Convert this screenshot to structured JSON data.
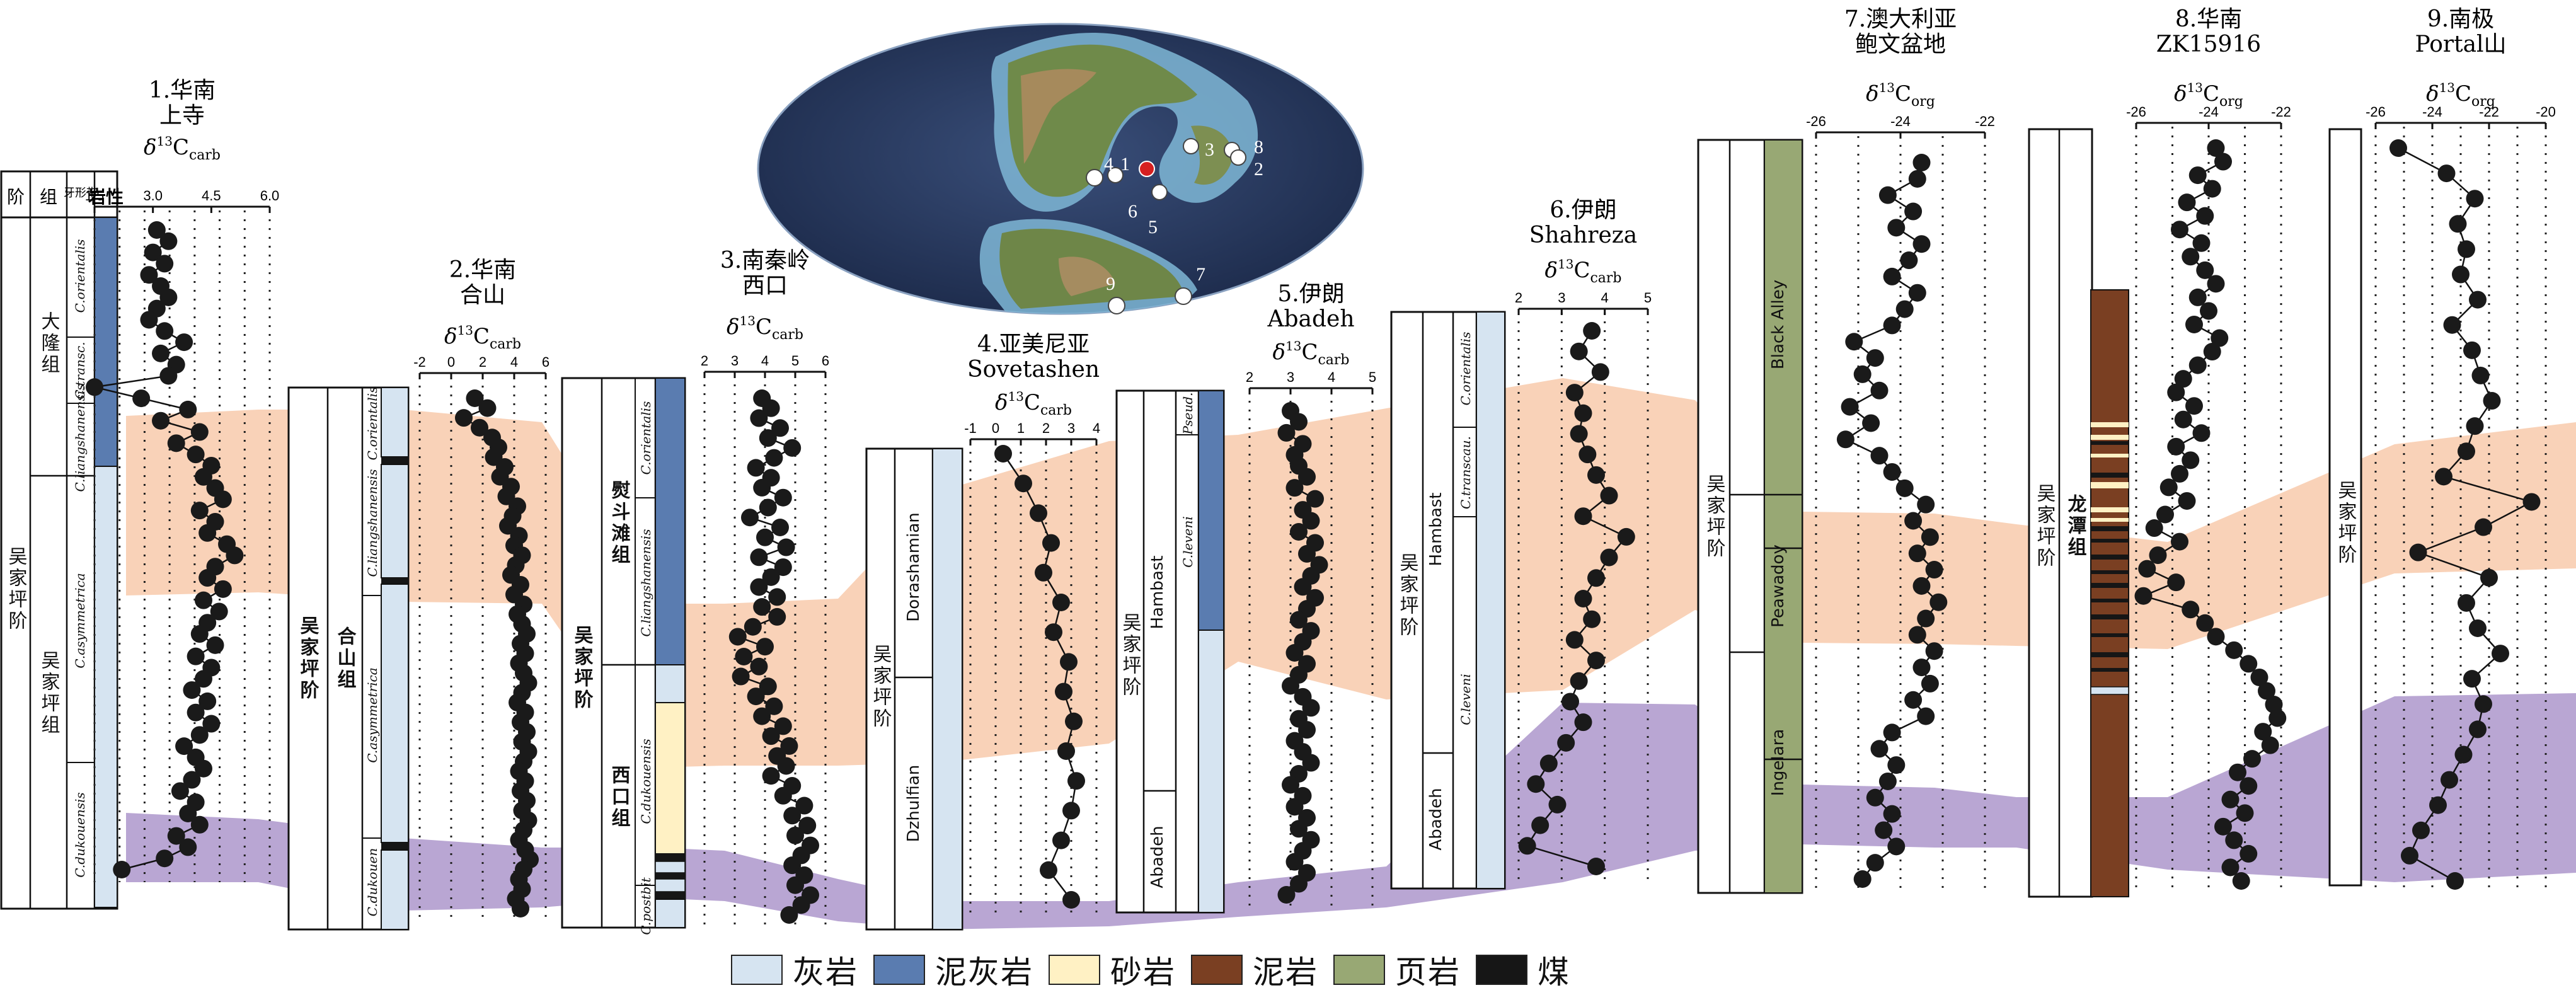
{
  "map": {
    "labels": [
      "1",
      "2",
      "3",
      "4",
      "5",
      "6",
      "7",
      "8",
      "9"
    ]
  },
  "legend": [
    {
      "label": "灰岩",
      "color": "#d6e4f1"
    },
    {
      "label": "泥灰岩",
      "color": "#5a7cb0"
    },
    {
      "label": "砂岩",
      "color": "#fff1c4"
    },
    {
      "label": "泥岩",
      "color": "#7a3f22"
    },
    {
      "label": "页岩",
      "color": "#98a874"
    },
    {
      "label": "煤",
      "color": "#161616"
    }
  ],
  "colors": {
    "band_orange": "#f9d2b8",
    "band_purple": "#b9a6d3",
    "points": "#1a1a1a"
  },
  "strat_header": [
    "阶",
    "组",
    "牙形带",
    "岩性"
  ],
  "chart_data": [
    {
      "type": "scatter",
      "title": [
        "1.华南",
        "上寺"
      ],
      "proxy": "δ13Ccarb",
      "ticks": [
        "1.5",
        "3.0",
        "4.5",
        "6.0"
      ],
      "xlim": [
        1.5,
        6.0
      ],
      "x": [
        3.1,
        3.4,
        3.0,
        3.3,
        2.9,
        3.2,
        3.4,
        3.1,
        2.9,
        3.3,
        3.8,
        3.2,
        3.6,
        3.4,
        1.5,
        2.7,
        3.9,
        3.2,
        4.2,
        3.6,
        4.1,
        4.5,
        4.3,
        4.6,
        4.8,
        4.2,
        4.6,
        4.4,
        4.9,
        5.1,
        4.6,
        4.4,
        4.8,
        4.3,
        4.7,
        4.4,
        4.2,
        4.6,
        4.1,
        4.5,
        4.3,
        4.0,
        4.4,
        4.1,
        4.5,
        4.2,
        3.8,
        4.1,
        4.3,
        4.0,
        3.7,
        4.1,
        3.9,
        4.2,
        3.6,
        3.9,
        3.3,
        2.2
      ],
      "y_order": "stratigraphic, top to bottom"
    },
    {
      "type": "scatter",
      "title": [
        "2.华南",
        "合山"
      ],
      "proxy": "δ13Ccarb",
      "ticks": [
        "-2",
        "0",
        "2",
        "4",
        "6"
      ],
      "xlim": [
        -2,
        6
      ],
      "x": [
        1.5,
        2.3,
        0.8,
        1.8,
        2.6,
        3.0,
        2.7,
        3.4,
        3.1,
        3.8,
        3.5,
        4.2,
        3.9,
        3.6,
        4.3,
        4.0,
        4.5,
        4.1,
        3.8,
        4.4,
        4.0,
        4.6,
        4.2,
        4.5,
        4.8,
        4.4,
        4.7,
        4.3,
        4.6,
        4.9,
        4.5,
        4.2,
        4.7,
        4.4,
        4.8,
        4.5,
        4.9,
        4.6,
        4.3,
        4.7,
        4.4,
        4.8,
        4.5,
        4.9,
        4.6,
        4.3,
        4.7,
        5.0,
        4.6,
        4.3,
        4.5,
        4.1,
        4.4
      ],
      "y_order": "stratigraphic, top to bottom"
    },
    {
      "type": "scatter",
      "title": [
        "3.南秦岭",
        "西口"
      ],
      "proxy": "δ13Ccarb",
      "ticks": [
        "2",
        "3",
        "4",
        "5",
        "6"
      ],
      "xlim": [
        2,
        6
      ],
      "x": [
        3.9,
        4.2,
        3.8,
        4.5,
        4.1,
        4.9,
        4.3,
        3.7,
        4.2,
        3.9,
        4.6,
        4.1,
        3.5,
        4.5,
        4.0,
        4.7,
        3.8,
        4.6,
        4.2,
        3.8,
        4.4,
        3.9,
        4.4,
        3.6,
        3.1,
        4.0,
        3.3,
        3.8,
        3.2,
        4.1,
        3.7,
        4.3,
        3.9,
        4.6,
        4.2,
        4.8,
        4.4,
        4.7,
        4.2,
        4.9,
        4.6,
        5.3,
        4.9,
        5.4,
        5.0,
        5.5,
        5.2,
        4.9,
        5.3,
        5.0,
        5.5,
        5.2,
        4.8
      ],
      "y_order": "stratigraphic, top to bottom"
    },
    {
      "type": "scatter",
      "title": [
        "4.亚美尼亚",
        "Sovetashen"
      ],
      "proxy": "δ13Ccarb",
      "ticks": [
        "-1",
        "0",
        "1",
        "2",
        "3",
        "4"
      ],
      "xlim": [
        -1,
        4
      ],
      "x": [
        0.3,
        1.1,
        1.7,
        2.2,
        1.9,
        2.6,
        2.3,
        2.9,
        2.7,
        3.1,
        2.8,
        3.2,
        3.0,
        2.6,
        2.1,
        3.0
      ],
      "y_order": "stratigraphic, top to bottom"
    },
    {
      "type": "scatter",
      "title": [
        "5.伊朗",
        "Abadeh"
      ],
      "proxy": "δ13Ccarb",
      "ticks": [
        "2",
        "3",
        "4",
        "5"
      ],
      "xlim": [
        2,
        5
      ],
      "x": [
        3.0,
        3.2,
        2.9,
        3.3,
        3.1,
        3.2,
        3.4,
        3.1,
        3.6,
        3.3,
        3.5,
        3.2,
        3.6,
        3.4,
        3.7,
        3.5,
        3.3,
        3.6,
        3.4,
        3.2,
        3.5,
        3.3,
        3.1,
        3.4,
        3.2,
        3.0,
        3.3,
        3.5,
        3.2,
        3.4,
        3.1,
        3.3,
        3.5,
        3.2,
        3.0,
        3.3,
        3.1,
        3.4,
        3.2,
        3.5,
        3.3,
        3.1,
        3.4,
        3.2,
        2.9
      ],
      "y_order": "stratigraphic, top to bottom"
    },
    {
      "type": "scatter",
      "title": [
        "6.伊朗",
        "Shahreza"
      ],
      "proxy": "δ13Ccarb",
      "ticks": [
        "2",
        "3",
        "4",
        "5"
      ],
      "xlim": [
        2,
        5
      ],
      "x": [
        3.7,
        3.4,
        3.9,
        3.3,
        3.5,
        3.4,
        3.6,
        3.8,
        4.1,
        3.5,
        4.5,
        4.1,
        3.8,
        3.5,
        3.7,
        3.3,
        3.8,
        3.4,
        3.2,
        3.5,
        3.1,
        2.7,
        2.4,
        2.9,
        2.5,
        2.2,
        3.8
      ],
      "y_order": "stratigraphic, top to bottom"
    },
    {
      "type": "scatter",
      "title": [
        "7.澳大利亚",
        "鲍文盆地"
      ],
      "proxy": "δ13Corg",
      "ticks": [
        "-26",
        "-24",
        "-22"
      ],
      "xlim": [
        -26,
        -22
      ],
      "x": [
        -23.5,
        -23.6,
        -24.3,
        -23.7,
        -24.1,
        -23.5,
        -23.8,
        -24.2,
        -23.6,
        -23.9,
        -24.2,
        -25.1,
        -24.6,
        -24.9,
        -24.5,
        -25.2,
        -24.7,
        -25.3,
        -24.5,
        -24.2,
        -23.9,
        -23.4,
        -23.7,
        -23.3,
        -23.6,
        -23.2,
        -23.5,
        -23.1,
        -23.4,
        -23.6,
        -23.2,
        -23.5,
        -23.3,
        -23.7,
        -23.4,
        -24.2,
        -24.5,
        -24.1,
        -24.3,
        -24.6,
        -24.2,
        -24.4,
        -24.1,
        -24.6,
        -24.9
      ],
      "y_order": "stratigraphic, top to bottom"
    },
    {
      "type": "scatter",
      "title": [
        "8.华南",
        "ZK15916"
      ],
      "proxy": "δ13Corg",
      "ticks": [
        "-26",
        "-24",
        "-22"
      ],
      "xlim": [
        -26,
        -22
      ],
      "x": [
        -23.8,
        -23.6,
        -24.3,
        -23.9,
        -24.6,
        -24.1,
        -24.8,
        -24.2,
        -24.5,
        -24.1,
        -23.8,
        -24.3,
        -24.0,
        -24.4,
        -23.7,
        -23.9,
        -24.3,
        -24.7,
        -24.9,
        -24.4,
        -24.7,
        -24.2,
        -24.9,
        -24.5,
        -24.8,
        -25.1,
        -24.6,
        -25.2,
        -25.5,
        -24.8,
        -25.4,
        -25.7,
        -24.9,
        -25.8,
        -24.5,
        -24.1,
        -23.8,
        -23.3,
        -22.9,
        -22.6,
        -22.4,
        -22.2,
        -22.1,
        -22.5,
        -22.3,
        -22.8,
        -23.2,
        -22.9,
        -23.4,
        -23.0,
        -23.6,
        -23.3,
        -22.9,
        -23.4,
        -23.1
      ],
      "y_order": "stratigraphic, top to bottom"
    },
    {
      "type": "scatter",
      "title": [
        "9.南极",
        "Portal山"
      ],
      "proxy": "δ13Corg",
      "ticks": [
        "-26",
        "-24",
        "-22",
        "-20"
      ],
      "xlim": [
        -26,
        -20
      ],
      "x": [
        -25.2,
        -23.5,
        -22.5,
        -23.1,
        -22.8,
        -23.0,
        -22.4,
        -23.3,
        -22.6,
        -22.3,
        -21.9,
        -22.5,
        -22.8,
        -23.6,
        -20.5,
        -22.2,
        -24.5,
        -22.0,
        -22.8,
        -22.4,
        -21.6,
        -22.6,
        -22.2,
        -22.4,
        -22.9,
        -23.4,
        -23.8,
        -24.4,
        -24.8,
        -23.2
      ],
      "y_order": "stratigraphic, top to bottom"
    }
  ],
  "columns": {
    "s1": {
      "stage": "吴家坪阶",
      "formations": [
        "大隆组",
        "吴家坪组"
      ],
      "zones": [
        "C.orientalis",
        "C.transc.",
        "C.liangshanensis",
        "C.asymmetrica",
        "C.dukouensis"
      ]
    },
    "s2": {
      "stage": "吴家坪阶",
      "formations": [
        "合山组"
      ],
      "zones": [
        "C.orientalis",
        "C.liangshanensis",
        "C.asymmetrica",
        "C.dukouen"
      ]
    },
    "s3": {
      "stage": "吴家坪阶",
      "formations": [
        "熨斗滩组",
        "西口组"
      ],
      "zones": [
        "C.orientalis",
        "C.liangshanensis",
        "C.dukouensis",
        "C.postbit"
      ]
    },
    "s4": {
      "stage": "吴家坪阶",
      "units": [
        "Dorashamian",
        "Dzhulfian"
      ]
    },
    "s5": {
      "stage": "吴家坪阶",
      "units": [
        "Hambast",
        "Abadeh"
      ],
      "zones": [
        "Pseud.",
        "C.leveni"
      ]
    },
    "s6": {
      "stage": "吴家坪阶",
      "units": [
        "Hambast",
        "Abadeh"
      ],
      "zones": [
        "C.orientalis",
        "C.transcau.",
        "C.leveni"
      ]
    },
    "s7": {
      "stage": "吴家坪阶",
      "units": [
        "Black Alley",
        "Peawadoy",
        "Ingelara"
      ]
    },
    "s8": {
      "stage": "吴家坪阶",
      "formations": [
        "龙潭组"
      ]
    },
    "s9": {
      "stage": "吴家坪阶"
    }
  }
}
